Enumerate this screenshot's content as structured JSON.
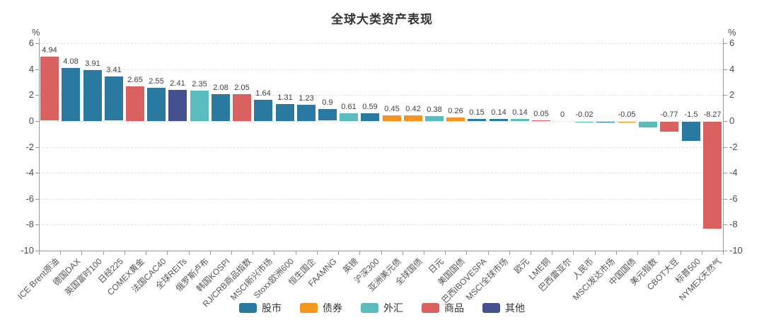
{
  "title": "全球大类资产表现",
  "y_axis": {
    "unit": "%",
    "min": -10,
    "max": 6,
    "ticks": [
      6,
      4,
      2,
      0,
      -2,
      -4,
      -6,
      -8,
      -10
    ]
  },
  "legend": {
    "items": [
      {
        "key": "stock",
        "label": "股市",
        "color": "#2979A1"
      },
      {
        "key": "bond",
        "label": "债券",
        "color": "#F5941F"
      },
      {
        "key": "fx",
        "label": "外汇",
        "color": "#5BBCBE"
      },
      {
        "key": "commodity",
        "label": "商品",
        "color": "#D96160"
      },
      {
        "key": "other",
        "label": "其他",
        "color": "#45518E"
      }
    ]
  },
  "chart_data": {
    "type": "bar",
    "title": "全球大类资产表现",
    "xlabel": "",
    "ylabel": "%",
    "ylim": [
      -10,
      6
    ],
    "grid": "horizontal-dashed",
    "legend_position": "bottom-center",
    "categories": [
      "ICE Brent原油",
      "德国DAX",
      "英国富时100",
      "日经225",
      "COMEX黄金",
      "法国CAC40",
      "全球REITs",
      "俄罗斯卢布",
      "韩国KOSPI",
      "RJ/CRB商品指数",
      "MSCI新兴市场",
      "Stoxx欧洲600",
      "恒生国企",
      "FAAMNG",
      "英镑",
      "沪深300",
      "亚洲美元债",
      "全球国债",
      "日元",
      "美国国债",
      "巴西IBOVESPA",
      "MSCI全球市场",
      "欧元",
      "LME铜",
      "巴西雷亚尔",
      "人民币",
      "MSCI发达市场",
      "中国国债",
      "美元指数",
      "CBOT大豆",
      "标普500",
      "NYMEX天然气"
    ],
    "points": [
      {
        "category": "ICE Brent原油",
        "series": "commodity",
        "value": 4.94,
        "value_label": "4.94"
      },
      {
        "category": "德国DAX",
        "series": "stock",
        "value": 4.08,
        "value_label": "4.08"
      },
      {
        "category": "英国富时100",
        "series": "stock",
        "value": 3.91,
        "value_label": "3.91"
      },
      {
        "category": "日经225",
        "series": "stock",
        "value": 3.41,
        "value_label": "3.41"
      },
      {
        "category": "COMEX黄金",
        "series": "commodity",
        "value": 2.65,
        "value_label": "2.65"
      },
      {
        "category": "法国CAC40",
        "series": "stock",
        "value": 2.55,
        "value_label": "2.55"
      },
      {
        "category": "全球REITs",
        "series": "other",
        "value": 2.41,
        "value_label": "2.41"
      },
      {
        "category": "俄罗斯卢布",
        "series": "fx",
        "value": 2.35,
        "value_label": "2.35"
      },
      {
        "category": "韩国KOSPI",
        "series": "stock",
        "value": 2.08,
        "value_label": "2.08"
      },
      {
        "category": "RJ/CRB商品指数",
        "series": "commodity",
        "value": 2.05,
        "value_label": "2.05"
      },
      {
        "category": "MSCI新兴市场",
        "series": "stock",
        "value": 1.64,
        "value_label": "1.64"
      },
      {
        "category": "Stoxx欧洲600",
        "series": "stock",
        "value": 1.31,
        "value_label": "1.31"
      },
      {
        "category": "恒生国企",
        "series": "stock",
        "value": 1.23,
        "value_label": "1.23"
      },
      {
        "category": "FAAMNG",
        "series": "stock",
        "value": 0.9,
        "value_label": "0.9"
      },
      {
        "category": "英镑",
        "series": "fx",
        "value": 0.61,
        "value_label": "0.61"
      },
      {
        "category": "沪深300",
        "series": "stock",
        "value": 0.59,
        "value_label": "0.59"
      },
      {
        "category": "亚洲美元债",
        "series": "bond",
        "value": 0.45,
        "value_label": "0.45"
      },
      {
        "category": "全球国债",
        "series": "bond",
        "value": 0.42,
        "value_label": "0.42"
      },
      {
        "category": "日元",
        "series": "fx",
        "value": 0.38,
        "value_label": "0.38"
      },
      {
        "category": "美国国债",
        "series": "bond",
        "value": 0.26,
        "value_label": "0.26"
      },
      {
        "category": "巴西IBOVESPA",
        "series": "stock",
        "value": 0.15,
        "value_label": "0.15"
      },
      {
        "category": "MSCI全球市场",
        "series": "stock",
        "value": 0.14,
        "value_label": "0.14"
      },
      {
        "category": "欧元",
        "series": "fx",
        "value": 0.14,
        "value_label": "0.14"
      },
      {
        "category": "LME铜",
        "series": "commodity",
        "value": 0.05,
        "value_label": "0.05"
      },
      {
        "category": "巴西雷亚尔",
        "series": "fx",
        "value": 0,
        "value_label": "0"
      },
      {
        "category": "人民币",
        "series": "fx",
        "value": -0.02,
        "value_label": "-0.02"
      },
      {
        "category": "MSCI发达市场",
        "series": "stock",
        "value": -0.05,
        "value_label": ""
      },
      {
        "category": "中国国债",
        "series": "bond",
        "value": -0.05,
        "value_label": "-0.05"
      },
      {
        "category": "美元指数",
        "series": "fx",
        "value": -0.45,
        "value_label": ""
      },
      {
        "category": "CBOT大豆",
        "series": "commodity",
        "value": -0.77,
        "value_label": "-0.77"
      },
      {
        "category": "标普500",
        "series": "stock",
        "value": -1.5,
        "value_label": "-1.5"
      },
      {
        "category": "NYMEX天然气",
        "series": "commodity",
        "value": -8.27,
        "value_label": "-8.27"
      }
    ]
  }
}
